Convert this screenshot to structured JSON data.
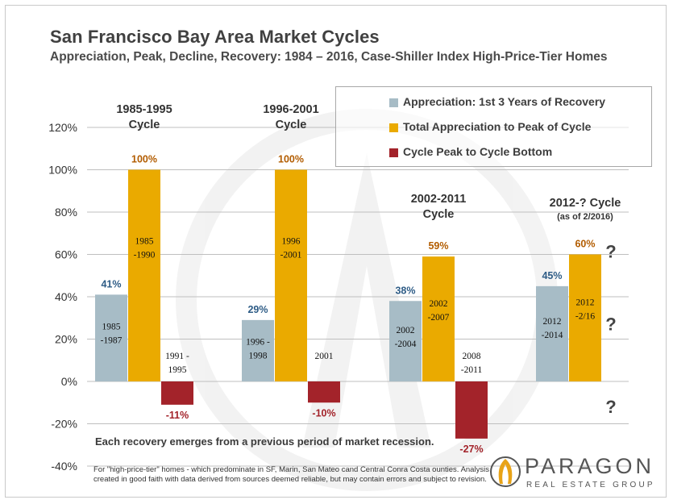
{
  "title": "San Francisco Bay Area Market Cycles",
  "subtitle": "Appreciation, Peak, Decline, Recovery: 1984 – 2016, Case-Shiller Index  High-Price-Tier Homes",
  "colors": {
    "appreciation": "#a7bcc6",
    "peak": "#eaaa00",
    "decline": "#a3232a",
    "grid": "#bfbfbf",
    "label_blue": "#2e5c86",
    "label_orange": "#b25c00",
    "label_red": "#a3232a"
  },
  "chart_data": {
    "type": "bar",
    "ylim": [
      -40,
      120
    ],
    "yticks": [
      -40,
      -20,
      0,
      20,
      40,
      60,
      80,
      100,
      120
    ],
    "ytick_labels": [
      "-40%",
      "-20%",
      "0%",
      "20%",
      "40%",
      "60%",
      "80%",
      "100%",
      "120%"
    ],
    "legend_position": "top-right",
    "series": [
      {
        "name": "Appreciation: 1st 3 Years of Recovery",
        "key": "appreciation"
      },
      {
        "name": "Total Appreciation to Peak of Cycle",
        "key": "peak"
      },
      {
        "name": "Cycle Peak to Cycle Bottom",
        "key": "decline"
      }
    ],
    "cycles": [
      {
        "label_lines": [
          "1985-1995",
          "Cycle"
        ],
        "bars": [
          {
            "series": "appreciation",
            "value": 41,
            "value_label": "41%",
            "period_lines": [
              "1985",
              "-1987"
            ]
          },
          {
            "series": "peak",
            "value": 100,
            "value_label": "100%",
            "period_lines": [
              "1985",
              "-1990"
            ]
          },
          {
            "series": "decline",
            "value": -11,
            "value_label": "-11%",
            "period_lines": [
              "1991  -",
              "1995"
            ]
          }
        ]
      },
      {
        "label_lines": [
          "1996-2001",
          "Cycle"
        ],
        "bars": [
          {
            "series": "appreciation",
            "value": 29,
            "value_label": "29%",
            "period_lines": [
              "1996  -",
              "1998"
            ]
          },
          {
            "series": "peak",
            "value": 100,
            "value_label": "100%",
            "period_lines": [
              "1996",
              "-2001"
            ]
          },
          {
            "series": "decline",
            "value": -10,
            "value_label": "-10%",
            "period_lines": [
              "2001"
            ]
          }
        ]
      },
      {
        "label_lines": [
          "2002-2011",
          "Cycle"
        ],
        "bars": [
          {
            "series": "appreciation",
            "value": 38,
            "value_label": "38%",
            "period_lines": [
              "2002",
              "-2004"
            ]
          },
          {
            "series": "peak",
            "value": 59,
            "value_label": "59%",
            "period_lines": [
              "2002",
              "-2007"
            ]
          },
          {
            "series": "decline",
            "value": -27,
            "value_label": "-27%",
            "period_lines": [
              "2008",
              "-2011"
            ]
          }
        ]
      },
      {
        "label_lines": [
          "2012-? Cycle",
          "(as of 2/2016)"
        ],
        "bars": [
          {
            "series": "appreciation",
            "value": 45,
            "value_label": "45%",
            "period_lines": [
              "2012",
              "-2014"
            ]
          },
          {
            "series": "peak",
            "value": 60,
            "value_label": "60%",
            "period_lines": [
              "2012",
              "-2/16"
            ]
          },
          {
            "series": "decline",
            "value": null,
            "value_label": "",
            "period_lines": []
          }
        ],
        "question_marks": [
          "?",
          "?",
          "?"
        ]
      }
    ]
  },
  "note": "Each recovery emerges from a previous period of market recession.",
  "footnote": "For \"high-price-tier\" homes - which predominate in SF, Marin, San Mateo cand Central Conra Costa ounties. Analysis created in good faith with data derived from sources deemed reliable, but may contain errors and subject to revision.",
  "logo": {
    "name": "PARAGON",
    "tagline": "REAL ESTATE GROUP",
    "icon": "paragon-a-logo-icon"
  }
}
